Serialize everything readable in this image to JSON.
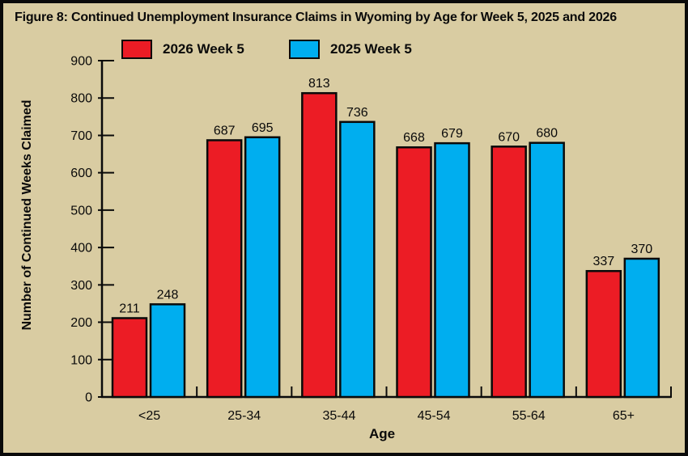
{
  "chart_data": {
    "type": "bar",
    "title": "Figure 8: Continued Unemployment Insurance Claims in Wyoming by Age for Week 5, 2025 and 2026",
    "categories": [
      "<25",
      "25-34",
      "35-44",
      "45-54",
      "55-64",
      "65+"
    ],
    "series": [
      {
        "name": "2026 Week 5",
        "color": "#ec1c25",
        "values": [
          211,
          687,
          813,
          668,
          670,
          337
        ]
      },
      {
        "name": "2025 Week 5",
        "color": "#00aeef",
        "values": [
          248,
          695,
          736,
          679,
          680,
          370
        ]
      }
    ],
    "xlabel": "Age",
    "ylabel": "Number of Continued Weeks Claimed",
    "ylim": [
      0,
      900
    ],
    "ytick_step": 100,
    "yticks": [
      0,
      100,
      200,
      300,
      400,
      500,
      600,
      700,
      800,
      900
    ],
    "grid": false,
    "legend_position": "top",
    "value_labels_shown": true,
    "colors": {
      "background": "#d9cca2",
      "bar_border": "#0a0a0a",
      "axis": "#0a0a0a",
      "text": "#0a0a0a",
      "frame_border": "#0a0a0a"
    }
  }
}
